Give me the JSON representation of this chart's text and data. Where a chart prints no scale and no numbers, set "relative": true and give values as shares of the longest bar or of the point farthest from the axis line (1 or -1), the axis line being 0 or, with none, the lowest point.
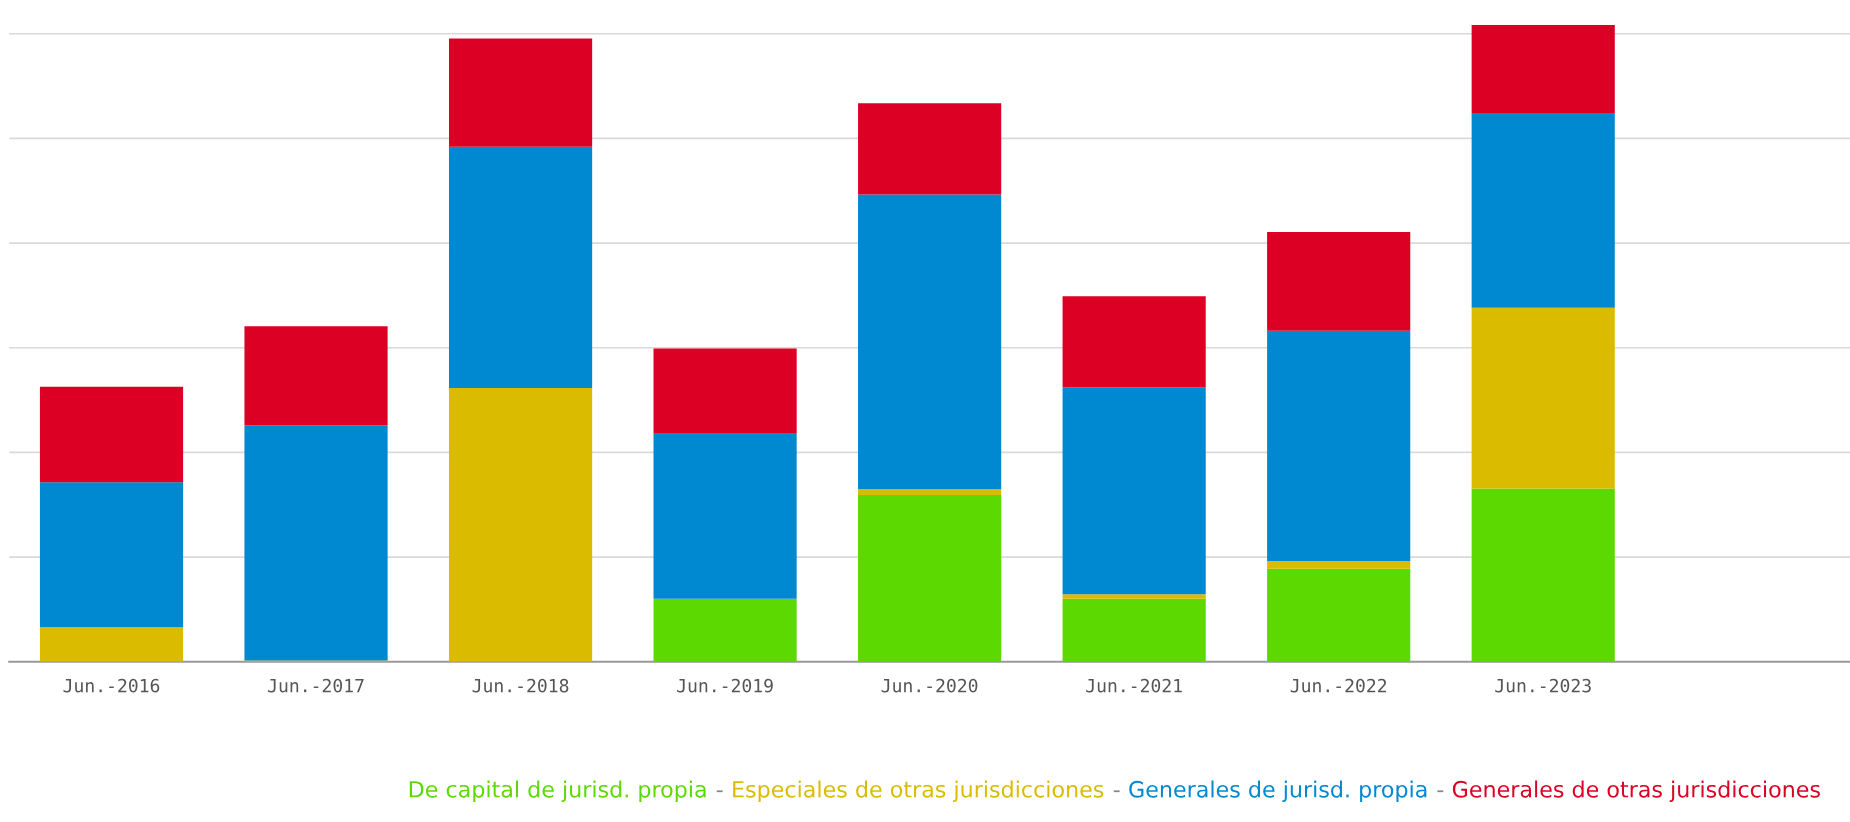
{
  "chart_data": {
    "type": "bar",
    "stacked": true,
    "relative": true,
    "grid": "y",
    "legend": "bottom",
    "categories": [
      "Jun.-2016",
      "Jun.-2017",
      "Jun.-2018",
      "Jun.-2019",
      "Jun.-2020",
      "Jun.-2021",
      "Jun.-2022",
      "Jun.-2023"
    ],
    "series": [
      {
        "name": "De capital de jurisd. propia",
        "color": "#5cd900",
        "values": [
          0,
          0,
          0,
          0.099,
          0.262,
          0.099,
          0.146,
          0.272
        ]
      },
      {
        "name": "Especiales de otras jurisdicciones",
        "color": "#dbbb00",
        "values": [
          0.054,
          0.002,
          0.43,
          0,
          0.009,
          0.007,
          0.012,
          0.284
        ]
      },
      {
        "name": "Generales de jurisd. propia",
        "color": "#0088d1",
        "values": [
          0.228,
          0.369,
          0.379,
          0.259,
          0.463,
          0.325,
          0.362,
          0.306
        ]
      },
      {
        "name": "Generales de otras jurisdicciones",
        "color": "#dc0024",
        "values": [
          0.15,
          0.156,
          0.17,
          0.134,
          0.143,
          0.143,
          0.155,
          0.138
        ]
      }
    ],
    "annotations": [
      "-"
    ]
  }
}
